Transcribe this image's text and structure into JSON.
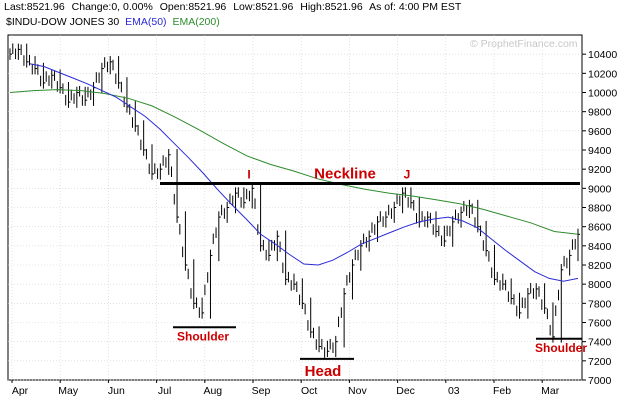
{
  "header": {
    "last": "Last:8521.96",
    "change": "Change:0, 0.00%",
    "open": "Open:8521.96",
    "low": "Low:8521.96",
    "high": "High:8521.96",
    "as_of": "As of:  4:00 PM EST"
  },
  "legend": {
    "symbol": "$INDU-DOW JONES 30",
    "ema50": "EMA(50)",
    "ema200": "EMA(200)"
  },
  "watermark": "© ProphetFinance.com",
  "colors": {
    "background": "#ffffff",
    "plot_background": "#ffffff",
    "price": "#000000",
    "ema50": "#2b2bd6",
    "ema200": "#2e8b2e",
    "annotation": "#cc0000",
    "neckline": "#000000",
    "grid": "#d0d0d0"
  },
  "chart_data": {
    "type": "line",
    "title": "",
    "xlabel": "",
    "ylabel": "",
    "ylim": [
      7000,
      10600
    ],
    "yticks": [
      7000,
      7200,
      7400,
      7600,
      7800,
      8000,
      8200,
      8400,
      8600,
      8800,
      9000,
      9200,
      9400,
      9600,
      9800,
      10000,
      10200,
      10400
    ],
    "x_tick_labels": [
      "Apr",
      "May",
      "Jun",
      "Jul",
      "Aug",
      "Sep",
      "Oct",
      "Nov",
      "Dec",
      "03",
      "Feb",
      "Mar"
    ],
    "grid": true,
    "series": [
      {
        "name": "$INDU-DOW JONES 30",
        "style": "ohlc_bars",
        "values": [
          10400,
          10450,
          10320,
          10250,
          10100,
          10180,
          10050,
          9900,
          10000,
          9920,
          10050,
          10250,
          10320,
          10100,
          9850,
          9650,
          9400,
          9150,
          9200,
          9350,
          8700,
          8200,
          7800,
          7700,
          8300,
          8700,
          8800,
          8950,
          8850,
          9000,
          8400,
          8300,
          8500,
          8050,
          8000,
          7800,
          7500,
          7350,
          7300,
          7400,
          7900,
          8200,
          8400,
          8500,
          8650,
          8700,
          8800,
          8950,
          8850,
          8650,
          8700,
          8550,
          8450,
          8650,
          8750,
          8820,
          8600,
          8350,
          8050,
          8000,
          7850,
          7700,
          7900,
          7950,
          7750,
          7450,
          8150,
          8300,
          8520
        ]
      },
      {
        "name": "EMA(50)",
        "style": "line",
        "values": [
          10300,
          10270,
          10210,
          10150,
          10090,
          10020,
          9950,
          9850,
          9750,
          9620,
          9470,
          9320,
          9160,
          8990,
          8830,
          8680,
          8520,
          8420,
          8310,
          8210,
          8200,
          8250,
          8330,
          8420,
          8480,
          8540,
          8600,
          8650,
          8680,
          8700,
          8660,
          8590,
          8470,
          8350,
          8240,
          8130,
          8060,
          8030,
          8060
        ]
      },
      {
        "name": "EMA(200)",
        "style": "line",
        "values": [
          10000,
          10020,
          10030,
          10020,
          9990,
          9940,
          9860,
          9740,
          9610,
          9470,
          9340,
          9250,
          9180,
          9100,
          9040,
          8990,
          8950,
          8920,
          8880,
          8840,
          8780,
          8710,
          8640,
          8550,
          8520
        ]
      }
    ],
    "annotations": {
      "neckline_level": 9050,
      "neckline_label": "Neckline",
      "peak_i_label": "I",
      "peak_j_label": "J",
      "left_shoulder_label": "Shoulder",
      "left_shoulder_level": 7550,
      "head_label": "Head",
      "head_level": 7220,
      "right_shoulder_label": "Shoulder",
      "right_shoulder_level": 7430
    }
  }
}
